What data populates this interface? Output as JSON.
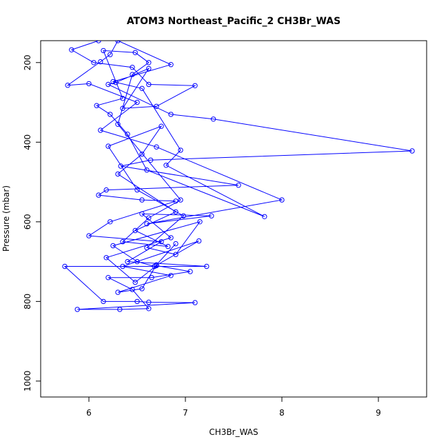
{
  "chart_data": {
    "type": "line",
    "title": "ATOM3 Northeast_Pacific_2 CH3Br_WAS",
    "xlabel": "CH3Br_WAS",
    "ylabel": "Pressure (mbar)",
    "xlim": [
      5.5,
      9.5
    ],
    "ylim": [
      1040,
      145
    ],
    "y_reversed": true,
    "grid": false,
    "legend": "none",
    "xticks": [
      6,
      7,
      8,
      9
    ],
    "yticks": [
      200,
      400,
      600,
      800,
      1000
    ],
    "series": [
      {
        "color": "#0000ff",
        "marker": "open-circle",
        "points": [
          [
            6.1,
            145
          ],
          [
            5.82,
            168
          ],
          [
            6.05,
            200
          ],
          [
            6.45,
            212
          ],
          [
            6.62,
            255
          ],
          [
            7.1,
            258
          ],
          [
            6.7,
            310
          ],
          [
            6.35,
            315
          ],
          [
            6.62,
            215
          ],
          [
            6.28,
            250
          ],
          [
            6.2,
            255
          ],
          [
            6.85,
            330
          ],
          [
            7.29,
            342
          ],
          [
            9.35,
            422
          ],
          [
            6.64,
            445
          ],
          [
            6.33,
            460
          ],
          [
            7.55,
            508
          ],
          [
            6.18,
            520
          ],
          [
            6.1,
            533
          ],
          [
            6.55,
            545
          ],
          [
            6.9,
            548
          ],
          [
            6.22,
            600
          ],
          [
            6.0,
            635
          ],
          [
            6.75,
            650
          ],
          [
            6.4,
            700
          ],
          [
            7.22,
            712
          ],
          [
            5.75,
            712
          ],
          [
            6.15,
            800
          ],
          [
            6.5,
            800
          ],
          [
            6.62,
            802
          ],
          [
            7.1,
            803
          ],
          [
            5.88,
            820
          ],
          [
            6.32,
            820
          ],
          [
            6.62,
            818
          ],
          [
            6.45,
            770
          ],
          [
            6.2,
            740
          ],
          [
            6.65,
            740
          ],
          [
            7.05,
            725
          ],
          [
            6.7,
            710
          ],
          [
            6.48,
            752
          ],
          [
            6.18,
            690
          ],
          [
            6.85,
            640
          ],
          [
            6.55,
            580
          ],
          [
            7.27,
            585
          ],
          [
            6.6,
            605
          ],
          [
            8.0,
            545
          ],
          [
            6.7,
            412
          ],
          [
            6.12,
            370
          ],
          [
            6.5,
            300
          ],
          [
            6.0,
            253
          ],
          [
            5.78,
            257
          ],
          [
            6.12,
            198
          ],
          [
            6.22,
            180
          ],
          [
            6.3,
            145
          ],
          [
            6.85,
            205
          ],
          [
            6.25,
            248
          ],
          [
            6.55,
            265
          ],
          [
            6.95,
            420
          ],
          [
            6.8,
            458
          ],
          [
            7.82,
            587
          ],
          [
            6.6,
            470
          ],
          [
            6.4,
            380
          ],
          [
            6.22,
            330
          ],
          [
            6.08,
            308
          ],
          [
            6.35,
            290
          ],
          [
            6.15,
            170
          ],
          [
            6.48,
            175
          ],
          [
            6.62,
            200
          ],
          [
            6.45,
            230
          ],
          [
            6.3,
            355
          ],
          [
            6.95,
            545
          ],
          [
            6.62,
            590
          ],
          [
            6.35,
            650
          ],
          [
            6.82,
            662
          ],
          [
            6.48,
            622
          ],
          [
            6.9,
            575
          ],
          [
            6.3,
            480
          ],
          [
            6.55,
            430
          ],
          [
            6.75,
            360
          ],
          [
            6.2,
            410
          ],
          [
            6.5,
            520
          ],
          [
            6.98,
            585
          ],
          [
            6.6,
            665
          ],
          [
            6.9,
            682
          ],
          [
            7.15,
            600
          ],
          [
            6.25,
            660
          ],
          [
            6.5,
            700
          ],
          [
            6.68,
            712
          ],
          [
            7.14,
            648
          ],
          [
            6.35,
            712
          ],
          [
            6.85,
            735
          ],
          [
            6.3,
            777
          ],
          [
            6.55,
            768
          ],
          [
            6.7,
            708
          ],
          [
            6.9,
            655
          ]
        ]
      }
    ]
  }
}
